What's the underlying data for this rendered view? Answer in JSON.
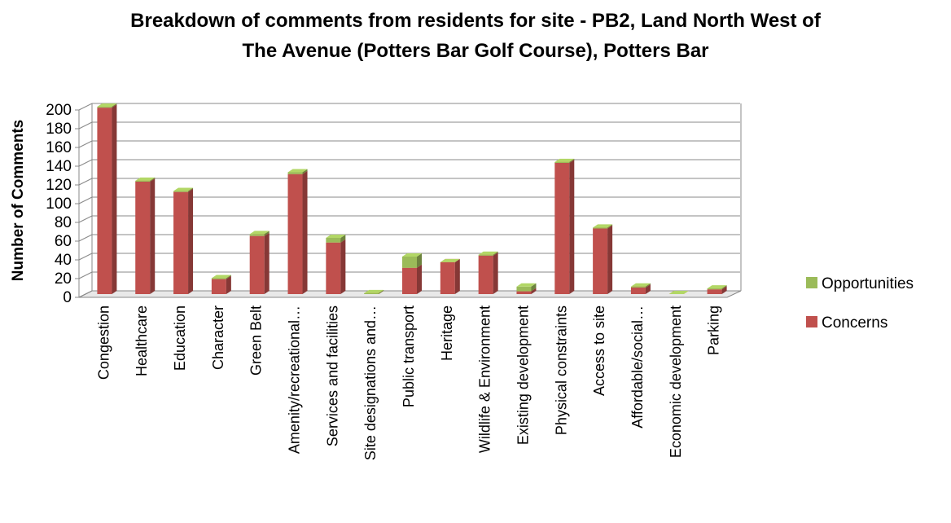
{
  "chart_data": {
    "type": "bar3d_stacked",
    "title": [
      "Breakdown of comments from residents for site - PB2, Land North West of",
      "The Avenue (Potters Bar Golf Course), Potters Bar"
    ],
    "y_label": "Number of Comments",
    "categories": [
      "Congestion",
      "Healthcare",
      "Education",
      "Character",
      "Green Belt",
      "Amenity/recreational…",
      "Services and facilities",
      "Site designations and…",
      "Public transport",
      "Heritage",
      "Wildlife & Environment",
      "Existing development",
      "Physical constraints",
      "Access to site",
      "Affordable/social…",
      "Economic development",
      "Parking"
    ],
    "series": [
      {
        "name": "Concerns",
        "color": "#c0504d",
        "values": [
          199,
          120,
          109,
          16,
          62,
          128,
          55,
          0,
          28,
          34,
          41,
          3,
          140,
          70,
          7,
          0,
          5
        ]
      },
      {
        "name": "Opportunities",
        "color": "#9bbb59",
        "values": [
          1,
          1,
          1,
          1,
          2,
          2,
          5,
          1,
          12,
          0,
          1,
          5,
          1,
          1,
          1,
          0,
          1
        ]
      }
    ],
    "ylim": [
      0,
      200
    ],
    "yticks": [
      0,
      20,
      40,
      60,
      80,
      100,
      120,
      140,
      160,
      180,
      200
    ],
    "grid": true,
    "legend": "right",
    "stacked": true
  }
}
